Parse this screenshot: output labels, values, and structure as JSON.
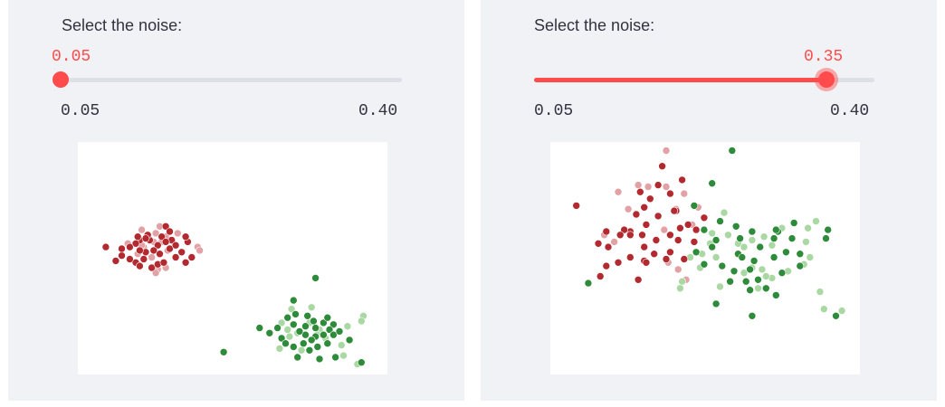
{
  "sliders": [
    {
      "label": "Select the noise:",
      "value": "0.05",
      "min": "0.05",
      "max": "0.40",
      "fraction": 0.0
    },
    {
      "label": "Select the noise:",
      "value": "0.35",
      "min": "0.05",
      "max": "0.40",
      "fraction": 0.857
    }
  ],
  "colors": {
    "accent": "#ff4b4b",
    "class_red": "#b22a2f",
    "class_red_light": "#e2a1a4",
    "class_green": "#2e8b3a",
    "class_green_light": "#a9d8a3"
  },
  "chart_data": [
    {
      "type": "scatter",
      "series": [
        {
          "values": [
            [
              -7.9,
              -1.2
            ],
            [
              -7.4,
              -1.2
            ],
            [
              -7.5,
              -0.9
            ],
            [
              -6.6,
              -0.4
            ],
            [
              -6.3,
              -1.2
            ],
            [
              -6.8,
              -1.0
            ],
            [
              -7.0,
              -1.5
            ],
            [
              -7.2,
              -1.8
            ],
            [
              -7.6,
              -1.9
            ],
            [
              -8.1,
              -1.4
            ],
            [
              -8.4,
              -1.6
            ],
            [
              -7.9,
              -1.8
            ],
            [
              -7.6,
              -1.1
            ],
            [
              -6.4,
              -1.7
            ],
            [
              -6.1,
              -1.5
            ],
            [
              -5.8,
              -1.9
            ],
            [
              -5.5,
              -1.3
            ],
            [
              -6.9,
              -2.0
            ],
            [
              -7.7,
              -2.3
            ],
            [
              -8.1,
              -2.5
            ],
            [
              -8.4,
              -2.3
            ],
            [
              -8.8,
              -2.1
            ],
            [
              -9.1,
              -2.4
            ],
            [
              -9.6,
              -1.6
            ],
            [
              -8.8,
              -1.7
            ],
            [
              -8.0,
              -1.0
            ],
            [
              -7.3,
              -2.8
            ],
            [
              -7.0,
              -2.6
            ],
            [
              -6.7,
              -2.5
            ],
            [
              -6.1,
              -2.2
            ],
            [
              -5.6,
              -2.5
            ],
            [
              -5.3,
              -2.2
            ],
            [
              -5.6,
              -1.0
            ],
            [
              -7.9,
              -2.7
            ],
            [
              -6.6,
              -1.3
            ],
            [
              -6.4,
              -0.7
            ]
          ]
        },
        {
          "values": [
            [
              -7.1,
              -0.8
            ],
            [
              -6.8,
              -1.3
            ],
            [
              -6.9,
              -0.4
            ],
            [
              -7.7,
              -1.6
            ],
            [
              -8.5,
              -1.4
            ],
            [
              -7.3,
              -2.2
            ],
            [
              -7.0,
              -2.9
            ],
            [
              -7.1,
              -3.1
            ],
            [
              -6.6,
              -2.8
            ],
            [
              -5.0,
              -1.6
            ],
            [
              -4.9,
              -1.8
            ],
            [
              -7.8,
              -1.5
            ],
            [
              -6.5,
              -1.8
            ],
            [
              -6.0,
              -0.8
            ],
            [
              -7.2,
              -1.3
            ],
            [
              -6.6,
              -1.0
            ],
            [
              -8.0,
              -2.0
            ],
            [
              -7.8,
              -0.6
            ]
          ]
        },
        {
          "values": [
            [
              0.9,
              -3.4
            ],
            [
              -0.2,
              -4.7
            ],
            [
              -0.1,
              -5.5
            ],
            [
              0.5,
              -5.6
            ],
            [
              0.8,
              -5.9
            ],
            [
              0.4,
              -6.2
            ],
            [
              0.9,
              -6.3
            ],
            [
              1.3,
              -6.0
            ],
            [
              1.5,
              -5.7
            ],
            [
              1.8,
              -6.1
            ],
            [
              1.6,
              -6.4
            ],
            [
              1.3,
              -6.7
            ],
            [
              0.9,
              -6.8
            ],
            [
              0.4,
              -6.7
            ],
            [
              0.1,
              -6.5
            ],
            [
              -0.2,
              -6.1
            ],
            [
              -1.0,
              -6.3
            ],
            [
              -1.4,
              -6.6
            ],
            [
              -0.8,
              -6.9
            ],
            [
              -0.6,
              -7.2
            ],
            [
              -0.2,
              -7.4
            ],
            [
              0.3,
              -7.2
            ],
            [
              0.6,
              -7.6
            ],
            [
              1.0,
              -7.4
            ],
            [
              1.5,
              -7.2
            ],
            [
              1.8,
              -6.7
            ],
            [
              2.1,
              -6.5
            ],
            [
              2.6,
              -7.0
            ],
            [
              0.0,
              -8.0
            ],
            [
              1.1,
              -8.1
            ],
            [
              1.9,
              -8.0
            ],
            [
              -3.7,
              -7.7
            ],
            [
              3.2,
              -8.3
            ],
            [
              -1.9,
              -6.3
            ],
            [
              -0.5,
              -5.7
            ],
            [
              0.7,
              -7.0
            ]
          ]
        },
        {
          "values": [
            [
              0.7,
              -5.1
            ],
            [
              -0.8,
              -6.0
            ],
            [
              0.0,
              -6.6
            ],
            [
              0.6,
              -6.0
            ],
            [
              1.1,
              -6.4
            ],
            [
              -0.9,
              -7.5
            ],
            [
              2.3,
              -7.9
            ],
            [
              3.0,
              -8.4
            ],
            [
              3.3,
              -5.6
            ],
            [
              3.2,
              -5.9
            ],
            [
              -0.4,
              -6.8
            ],
            [
              1.4,
              -6.9
            ],
            [
              -0.5,
              -6.4
            ],
            [
              0.2,
              -7.6
            ],
            [
              2.2,
              -7.3
            ],
            [
              -0.3,
              -5.2
            ],
            [
              1.0,
              -6.7
            ],
            [
              2.5,
              -6.2
            ]
          ]
        }
      ]
    },
    {
      "type": "scatter",
      "series": [
        {
          "values": [
            [
              -6.3,
              0.7
            ],
            [
              -6.5,
              1.6
            ],
            [
              -6.0,
              1.2
            ],
            [
              -5.6,
              2.0
            ],
            [
              -5.0,
              1.5
            ],
            [
              -4.7,
              0.5
            ],
            [
              -5.6,
              0.2
            ],
            [
              -6.2,
              -0.3
            ],
            [
              -7.0,
              -0.7
            ],
            [
              -6.7,
              0.3
            ],
            [
              -7.3,
              -0.6
            ],
            [
              -8.2,
              -0.7
            ],
            [
              -8.6,
              -1.4
            ],
            [
              -8.1,
              -1.6
            ],
            [
              -7.5,
              -0.9
            ],
            [
              -7.0,
              -0.9
            ],
            [
              -6.4,
              -0.9
            ],
            [
              -6.3,
              -1.6
            ],
            [
              -5.8,
              -2.0
            ],
            [
              -5.7,
              -1.2
            ],
            [
              -5.0,
              -0.9
            ],
            [
              -4.6,
              -1.2
            ],
            [
              -4.1,
              -0.3
            ],
            [
              -4.5,
              -0.5
            ],
            [
              -5.4,
              3.1
            ],
            [
              -4.4,
              2.3
            ],
            [
              -4.8,
              0.5
            ],
            [
              -5.2,
              -2.3
            ],
            [
              -6.3,
              -2.4
            ],
            [
              -7.0,
              -2.2
            ],
            [
              -7.6,
              -2.5
            ],
            [
              -9.7,
              0.8
            ],
            [
              -8.2,
              -2.7
            ],
            [
              -8.5,
              -3.3
            ],
            [
              -6.6,
              -3.5
            ],
            [
              -6.2,
              -2.5
            ],
            [
              -5.0,
              -1.9
            ],
            [
              -4.3,
              -2.3
            ],
            [
              -3.7,
              -0.6
            ],
            [
              -3.3,
              0.1
            ],
            [
              -3.8,
              -1.3
            ]
          ]
        },
        {
          "values": [
            [
              -6.1,
              1.9
            ],
            [
              -5.2,
              1.9
            ],
            [
              -4.7,
              0.6
            ],
            [
              -4.3,
              1.5
            ],
            [
              -3.6,
              0.7
            ],
            [
              -7.1,
              0.6
            ],
            [
              -8.3,
              -0.9
            ],
            [
              -7.8,
              -1.3
            ],
            [
              -5.3,
              -0.6
            ],
            [
              -4.6,
              -2.9
            ],
            [
              -5.1,
              -2.5
            ],
            [
              -3.9,
              -0.3
            ],
            [
              -5.2,
              4.0
            ],
            [
              -6.6,
              2.0
            ],
            [
              -7.6,
              1.6
            ],
            [
              -4.2,
              -3.5
            ]
          ]
        },
        {
          "values": [
            [
              -1.9,
              4.0
            ],
            [
              -2.9,
              2.1
            ],
            [
              -3.8,
              0.8
            ],
            [
              -3.3,
              -0.6
            ],
            [
              -2.5,
              -0.1
            ],
            [
              -1.7,
              -0.4
            ],
            [
              -1.5,
              -1.1
            ],
            [
              -0.9,
              -0.7
            ],
            [
              -0.5,
              -1.6
            ],
            [
              0.2,
              -1.1
            ],
            [
              0.4,
              -0.7
            ],
            [
              1.1,
              -1.1
            ],
            [
              1.2,
              -0.2
            ],
            [
              0.8,
              -1.9
            ],
            [
              0.2,
              -2.2
            ],
            [
              -0.8,
              -2.4
            ],
            [
              -1.6,
              -2.0
            ],
            [
              -2.4,
              -2.7
            ],
            [
              -1.8,
              -3.0
            ],
            [
              -1.0,
              -2.9
            ],
            [
              -1.2,
              -3.6
            ],
            [
              -2.0,
              -3.6
            ],
            [
              -3.3,
              -2.6
            ],
            [
              -3.7,
              -1.9
            ],
            [
              -2.9,
              -1.6
            ],
            [
              0.6,
              -3.1
            ],
            [
              1.5,
              -2.7
            ],
            [
              -0.6,
              -3.5
            ],
            [
              -0.2,
              -4.0
            ],
            [
              0.3,
              -4.4
            ],
            [
              -1.0,
              -4.1
            ],
            [
              -2.7,
              -4.9
            ],
            [
              -9.1,
              -3.7
            ],
            [
              -0.9,
              -5.6
            ],
            [
              -2.7,
              -1.2
            ],
            [
              2.9,
              -0.6
            ],
            [
              2.8,
              -1.1
            ],
            [
              1.5,
              -2.0
            ],
            [
              0.3,
              -0.6
            ],
            [
              -1.4,
              -2.2
            ],
            [
              3.3,
              -5.6
            ]
          ]
        },
        {
          "values": [
            [
              -2.3,
              0.4
            ],
            [
              -2.1,
              -0.9
            ],
            [
              -3.0,
              -1.4
            ],
            [
              -3.4,
              -2.0
            ],
            [
              -2.7,
              -2.2
            ],
            [
              -1.6,
              -1.4
            ],
            [
              -0.9,
              -1.2
            ],
            [
              0.1,
              -1.5
            ],
            [
              0.6,
              -0.5
            ],
            [
              1.8,
              -1.3
            ],
            [
              1.9,
              -0.5
            ],
            [
              2.0,
              -2.2
            ],
            [
              1.7,
              -2.6
            ],
            [
              -0.4,
              -2.9
            ],
            [
              0.1,
              -3.4
            ],
            [
              -1.3,
              -3.1
            ],
            [
              -0.2,
              -3.3
            ],
            [
              -4.4,
              -3.6
            ],
            [
              -4.5,
              -4.0
            ],
            [
              -3.5,
              -2.8
            ],
            [
              2.5,
              -4.2
            ],
            [
              3.6,
              -5.3
            ],
            [
              2.7,
              -5.2
            ],
            [
              -0.3,
              -1.0
            ],
            [
              -1.3,
              -1.6
            ],
            [
              -2.9,
              -0.8
            ],
            [
              0.9,
              -3.0
            ],
            [
              -0.9,
              -2.8
            ],
            [
              2.3,
              -0.1
            ],
            [
              -0.6,
              -4.0
            ],
            [
              -2.5,
              -3.9
            ],
            [
              -4.0,
              -2.2
            ]
          ]
        }
      ]
    }
  ]
}
